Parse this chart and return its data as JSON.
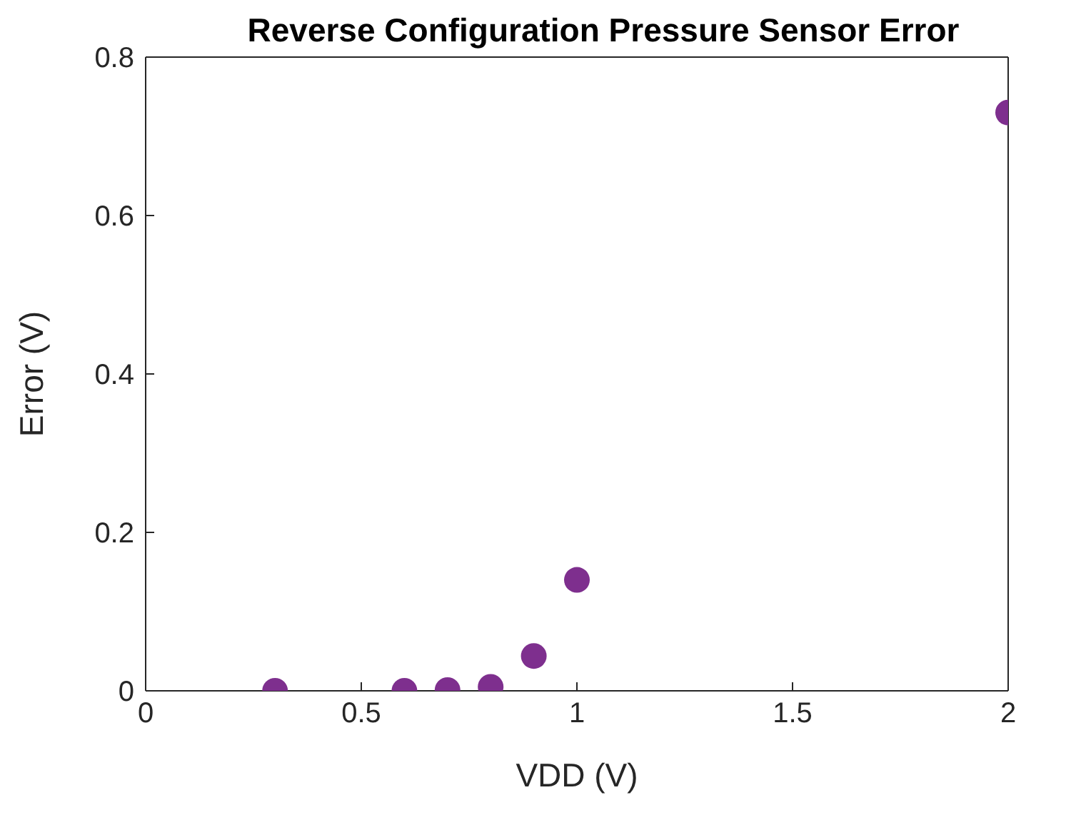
{
  "chart_data": {
    "type": "scatter",
    "title": "Reverse Configuration Pressure Sensor Error",
    "xlabel": "VDD (V)",
    "ylabel": "Error (V)",
    "x": [
      0.3,
      0.6,
      0.7,
      0.8,
      0.9,
      1,
      2
    ],
    "series": [
      {
        "color": "#7e2f8e",
        "values": [
          0,
          0,
          0.001,
          0.005,
          0.044,
          0.14,
          0.73
        ]
      }
    ],
    "xlim": [
      0,
      2
    ],
    "xticks": [
      0,
      0.5,
      1,
      1.5,
      2
    ],
    "ylim": [
      0,
      0.8
    ],
    "yticks": [
      0,
      0.2,
      0.4,
      0.6,
      0.8
    ],
    "grid": false,
    "legend": false,
    "marker": "circle"
  }
}
